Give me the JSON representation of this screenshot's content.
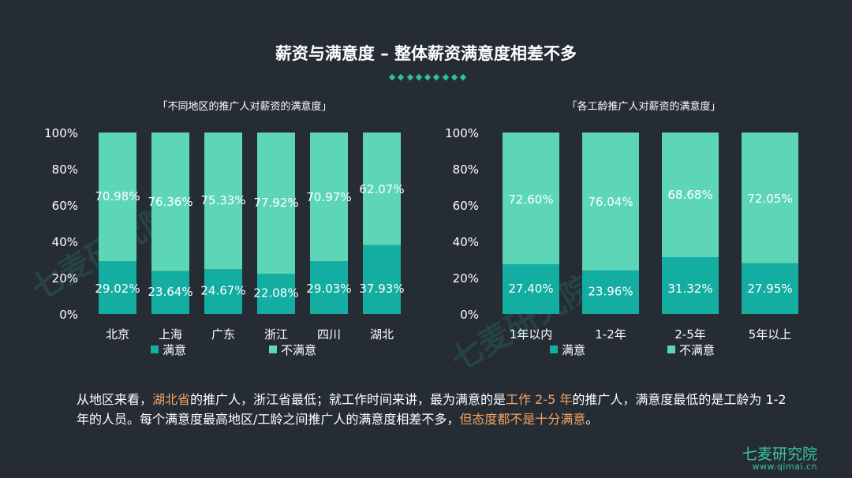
{
  "title": "薪资与满意度 – 整体薪资满意度相差不多",
  "colors": {
    "satisfied": "#14ada2",
    "unsatisfied": "#5dd6b8",
    "accent": "#2ebfa0",
    "highlight": "#f5a462",
    "background": "#252c34"
  },
  "chart_data": [
    {
      "type": "bar",
      "stacked": true,
      "title": "「不同地区的推广人对薪资的满意度」",
      "categories": [
        "北京",
        "上海",
        "广东",
        "浙江",
        "四川",
        "湖北"
      ],
      "series": [
        {
          "name": "满意",
          "values": [
            29.02,
            23.64,
            24.67,
            22.08,
            29.03,
            37.93
          ],
          "labels": [
            "29.02%",
            "23.64%",
            "24.67%",
            "22.08%",
            "29.03%",
            "37.93%"
          ]
        },
        {
          "name": "不满意",
          "values": [
            70.98,
            76.36,
            75.33,
            77.92,
            70.97,
            62.07
          ],
          "labels": [
            "70.98%",
            "76.36%",
            "75.33%",
            "77.92%",
            "70.97%",
            "62.07%"
          ]
        }
      ],
      "ylim": [
        0,
        100
      ],
      "yticks": [
        "0%",
        "20%",
        "40%",
        "60%",
        "80%",
        "100%"
      ],
      "legend": "bottom"
    },
    {
      "type": "bar",
      "stacked": true,
      "title": "「各工龄推广人对薪资的满意度」",
      "categories": [
        "1年以内",
        "1-2年",
        "2-5年",
        "5年以上"
      ],
      "series": [
        {
          "name": "满意",
          "values": [
            27.4,
            23.96,
            31.32,
            27.95
          ],
          "labels": [
            "27.40%",
            "23.96%",
            "31.32%",
            "27.95%"
          ]
        },
        {
          "name": "不满意",
          "values": [
            72.6,
            76.04,
            68.68,
            72.05
          ],
          "labels": [
            "72.60%",
            "76.04%",
            "68.68%",
            "72.05%"
          ]
        }
      ],
      "ylim": [
        0,
        100
      ],
      "yticks": [
        "0%",
        "20%",
        "40%",
        "60%",
        "80%",
        "100%"
      ],
      "legend": "bottom"
    }
  ],
  "summary": {
    "p1": "从地区来看，",
    "h1": "湖北省",
    "p2": "的推广人，浙江省最低；就工作时间来讲，最为满意的是",
    "h2": "工作 2-5 年",
    "p3": "的推广人，满意度最低的是工龄为 1-2 年的人员。每个满意度最高地区/工龄之间推广人的满意度相差不多，",
    "h3": "但态度都不是十分满意",
    "p4": "。"
  },
  "watermark": "七麦研究院",
  "brand": {
    "name": "七麦研究院",
    "url": "www.qimai.cn"
  }
}
